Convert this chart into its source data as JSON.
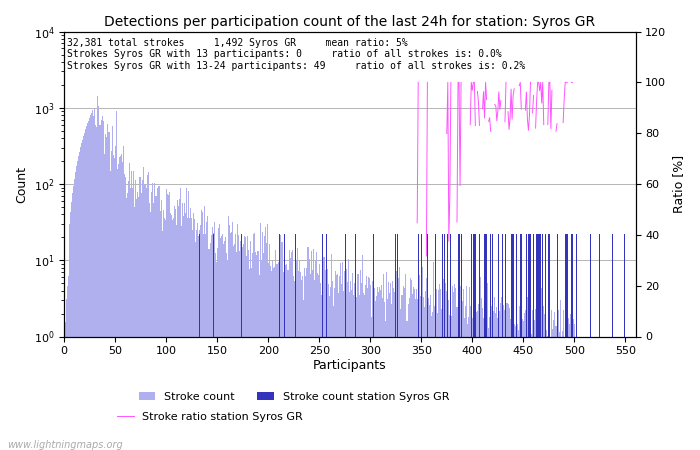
{
  "title": "Detections per participation count of the last 24h for station: Syros GR",
  "annotation_lines": [
    "32,381 total strokes     1,492 Syros GR     mean ratio: 5%",
    "Strokes Syros GR with 13 participants: 0     ratio of all strokes is: 0.0%",
    "Strokes Syros GR with 13-24 participants: 49     ratio of all strokes is: 0.2%"
  ],
  "xlabel": "Participants",
  "ylabel_left": "Count",
  "ylabel_right": "Ratio [%]",
  "xlim": [
    0,
    560
  ],
  "ylim_right": [
    0,
    120
  ],
  "bar_color_total": "#b0b0ee",
  "bar_color_station": "#3333bb",
  "line_color_ratio": "#ff55ff",
  "watermark": "www.lightningmaps.org",
  "legend_entries": [
    "Stroke count",
    "Stroke count station Syros GR",
    "Stroke ratio station Syros GR"
  ],
  "total_strokes": 32381,
  "station_strokes": 1492,
  "seed": 12345
}
